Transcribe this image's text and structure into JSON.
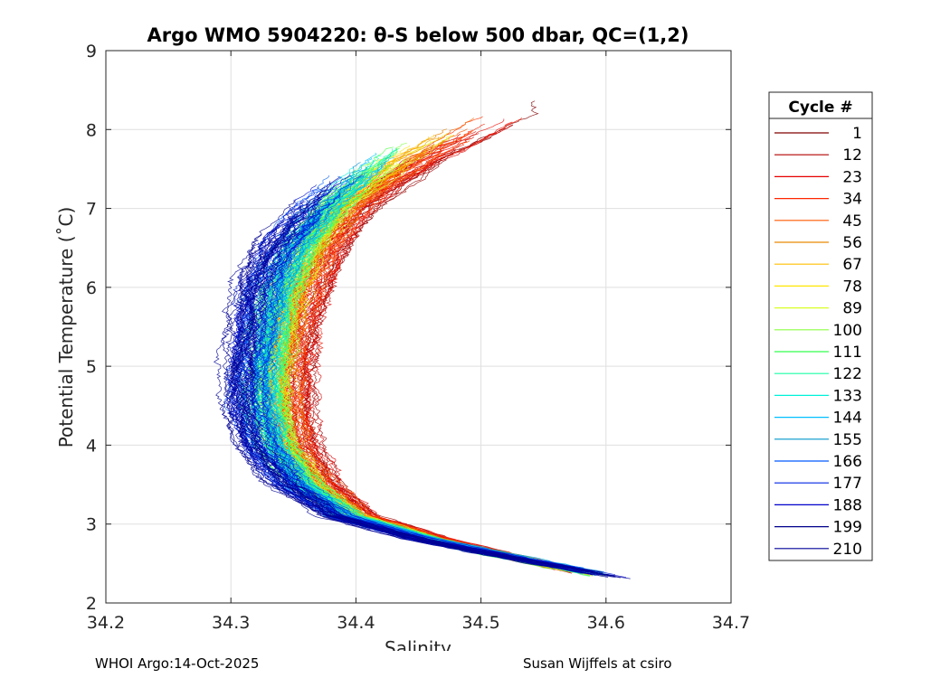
{
  "chart_data": {
    "type": "line",
    "title": "Argo WMO 5904220: θ-S below 500 dbar,  QC=(1,2)",
    "xlabel": "Salinity",
    "ylabel": "Potential Temperature (˚C)",
    "xlim": [
      34.2,
      34.7
    ],
    "ylim": [
      2,
      9
    ],
    "xticks": [
      34.2,
      34.3,
      34.4,
      34.5,
      34.6,
      34.7
    ],
    "xtick_labels": [
      "34.2",
      "34.3",
      "34.4",
      "34.5",
      "34.6",
      "34.7"
    ],
    "yticks": [
      2,
      3,
      4,
      5,
      6,
      7,
      8,
      9
    ],
    "ytick_labels": [
      "2",
      "3",
      "4",
      "5",
      "6",
      "7",
      "8",
      "9"
    ],
    "grid": true,
    "legend_title": "Cycle #",
    "legend_position": "outside-right",
    "legend": [
      {
        "label": "1",
        "color": "#800000"
      },
      {
        "label": "12",
        "color": "#b30000"
      },
      {
        "label": "23",
        "color": "#e60000"
      },
      {
        "label": "34",
        "color": "#ff2600"
      },
      {
        "label": "45",
        "color": "#ff5900"
      },
      {
        "label": "56",
        "color": "#e68a00"
      },
      {
        "label": "67",
        "color": "#ffbf00"
      },
      {
        "label": "78",
        "color": "#ffe600"
      },
      {
        "label": "89",
        "color": "#d9ff26"
      },
      {
        "label": "100",
        "color": "#8cff40"
      },
      {
        "label": "111",
        "color": "#33ff4d"
      },
      {
        "label": "122",
        "color": "#1affa6"
      },
      {
        "label": "133",
        "color": "#00f2d9"
      },
      {
        "label": "144",
        "color": "#00bfff"
      },
      {
        "label": "155",
        "color": "#0099cc"
      },
      {
        "label": "166",
        "color": "#0059ff"
      },
      {
        "label": "177",
        "color": "#0026e6"
      },
      {
        "label": "188",
        "color": "#0000cc"
      },
      {
        "label": "199",
        "color": "#00008c"
      },
      {
        "label": "210",
        "color": "#000099"
      }
    ],
    "series_spine": {
      "temperature": [
        2.3,
        2.5,
        2.8,
        3.1,
        3.5,
        4.0,
        4.5,
        5.0,
        5.5,
        6.0,
        6.5,
        7.0,
        7.3,
        7.6,
        7.9,
        8.2
      ],
      "salinity_early_cycles": [
        34.6,
        34.55,
        34.47,
        34.41,
        34.38,
        34.36,
        34.355,
        34.355,
        34.36,
        34.37,
        34.385,
        34.405,
        34.43,
        34.46,
        34.5,
        34.54
      ],
      "salinity_late_cycles": [
        34.62,
        34.55,
        34.45,
        34.38,
        34.34,
        34.315,
        34.305,
        34.305,
        34.31,
        34.315,
        34.33,
        34.355,
        34.375,
        34.39,
        34.4,
        34.41
      ]
    },
    "profile_count": 210,
    "temperature_range_by_cycle": {
      "early": [
        2.35,
        8.38
      ],
      "late": [
        2.3,
        7.4
      ]
    }
  },
  "footer": {
    "left": "WHOI Argo:14-Oct-2025",
    "right": "Susan Wijffels at csiro"
  }
}
